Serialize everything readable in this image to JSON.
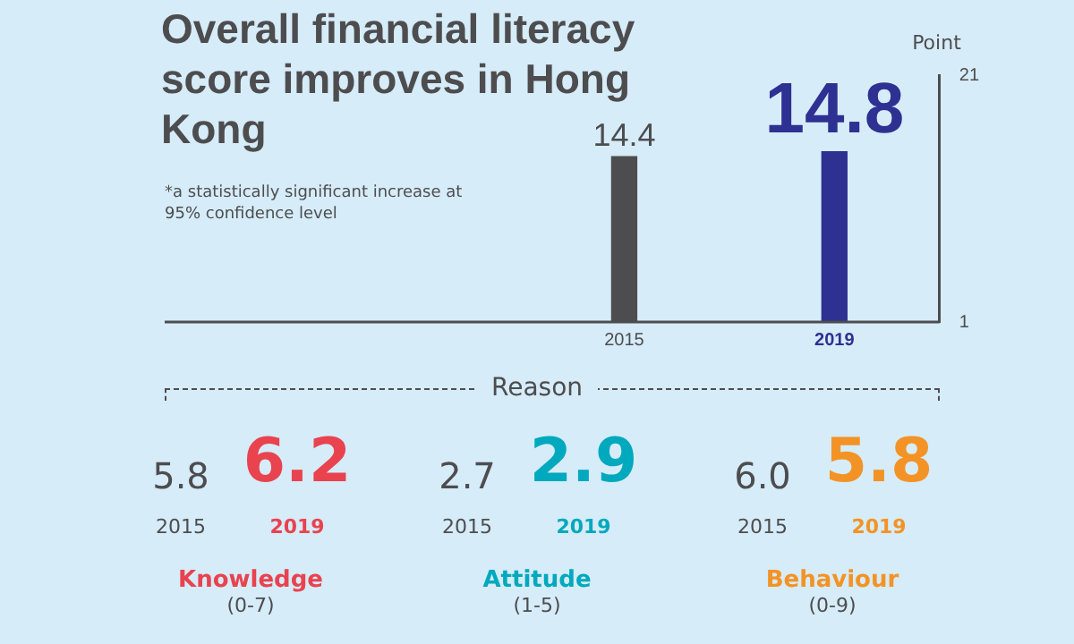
{
  "chart_data": [
    {
      "type": "bar",
      "title": "Overall financial literacy score improves in Hong Kong",
      "ylabel": "Point",
      "categories": [
        "2015",
        "2019"
      ],
      "values": [
        14.4,
        14.8
      ],
      "colors": [
        "#4d4d4f",
        "#2e3192"
      ],
      "ylim": [
        1,
        21
      ],
      "yticks": [
        1,
        21
      ],
      "data_labels": true,
      "grid": false,
      "annotations": [
        "*a statistically significant increase at 95% confidence level"
      ]
    },
    {
      "type": "other",
      "title": "Reason",
      "data_labels": true,
      "categories": [
        "Knowledge\n(0-7)",
        "Attitude\n(1-5)",
        "Behaviour\n(0-9)"
      ],
      "series": [
        {
          "name": "2015",
          "color": "#4d4d4f",
          "values": [
            5.8,
            2.7,
            6.0
          ],
          "value_labels": [
            "5.8",
            "2.7",
            "6.0"
          ]
        },
        {
          "name": "2019",
          "colors": [
            "#e8434f",
            "#00a9bd",
            "#f39325"
          ],
          "values": [
            6.2,
            2.9,
            5.8
          ]
        }
      ]
    }
  ]
}
